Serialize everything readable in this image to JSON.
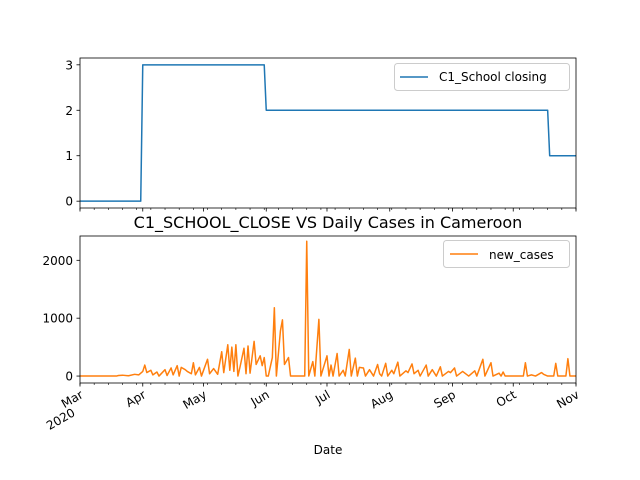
{
  "chart_data": [
    {
      "type": "line",
      "title": "",
      "xlabel": "",
      "ylabel": "",
      "ylim": [
        -0.15,
        3.15
      ],
      "y_ticks": [
        0,
        1,
        2,
        3
      ],
      "legend_placement": "upper right",
      "series": [
        {
          "name": "C1_School closing",
          "color": "#1f77b4",
          "points": [
            [
              "2020-03-01",
              0
            ],
            [
              "2020-03-31",
              0
            ],
            [
              "2020-04-01",
              3
            ],
            [
              "2020-05-31",
              3
            ],
            [
              "2020-06-01",
              2
            ],
            [
              "2020-10-18",
              2
            ],
            [
              "2020-10-19",
              1
            ],
            [
              "2020-11-01",
              1
            ]
          ]
        }
      ]
    },
    {
      "type": "line",
      "title": "C1_SCHOOL_CLOSE VS Daily Cases in Cameroon",
      "xlabel": "Date",
      "ylabel": "",
      "ylim": [
        -120,
        2420
      ],
      "y_ticks": [
        0,
        1000,
        2000
      ],
      "legend_placement": "upper right",
      "series": [
        {
          "name": "new_cases",
          "color": "#ff7f0e",
          "points": [
            [
              "2020-03-01",
              0
            ],
            [
              "2020-03-19",
              0
            ],
            [
              "2020-03-20",
              10
            ],
            [
              "2020-03-22",
              15
            ],
            [
              "2020-03-25",
              5
            ],
            [
              "2020-03-28",
              30
            ],
            [
              "2020-03-30",
              20
            ],
            [
              "2020-04-01",
              80
            ],
            [
              "2020-04-02",
              190
            ],
            [
              "2020-04-03",
              60
            ],
            [
              "2020-04-05",
              100
            ],
            [
              "2020-04-06",
              20
            ],
            [
              "2020-04-08",
              70
            ],
            [
              "2020-04-09",
              0
            ],
            [
              "2020-04-12",
              110
            ],
            [
              "2020-04-13",
              10
            ],
            [
              "2020-04-15",
              140
            ],
            [
              "2020-04-16",
              20
            ],
            [
              "2020-04-18",
              180
            ],
            [
              "2020-04-19",
              0
            ],
            [
              "2020-04-20",
              150
            ],
            [
              "2020-04-22",
              110
            ],
            [
              "2020-04-23",
              80
            ],
            [
              "2020-04-25",
              40
            ],
            [
              "2020-04-26",
              230
            ],
            [
              "2020-04-27",
              20
            ],
            [
              "2020-04-29",
              150
            ],
            [
              "2020-04-30",
              0
            ],
            [
              "2020-05-03",
              290
            ],
            [
              "2020-05-04",
              40
            ],
            [
              "2020-05-06",
              130
            ],
            [
              "2020-05-08",
              30
            ],
            [
              "2020-05-10",
              420
            ],
            [
              "2020-05-11",
              60
            ],
            [
              "2020-05-13",
              540
            ],
            [
              "2020-05-14",
              100
            ],
            [
              "2020-05-15",
              500
            ],
            [
              "2020-05-16",
              80
            ],
            [
              "2020-05-17",
              540
            ],
            [
              "2020-05-18",
              0
            ],
            [
              "2020-05-19",
              150
            ],
            [
              "2020-05-21",
              480
            ],
            [
              "2020-05-22",
              40
            ],
            [
              "2020-05-23",
              520
            ],
            [
              "2020-05-24",
              50
            ],
            [
              "2020-05-26",
              600
            ],
            [
              "2020-05-27",
              200
            ],
            [
              "2020-05-29",
              350
            ],
            [
              "2020-05-30",
              180
            ],
            [
              "2020-05-31",
              320
            ],
            [
              "2020-06-01",
              0
            ],
            [
              "2020-06-02",
              0
            ],
            [
              "2020-06-04",
              320
            ],
            [
              "2020-06-05",
              1180
            ],
            [
              "2020-06-06",
              0
            ],
            [
              "2020-06-08",
              780
            ],
            [
              "2020-06-09",
              970
            ],
            [
              "2020-06-10",
              200
            ],
            [
              "2020-06-12",
              320
            ],
            [
              "2020-06-13",
              0
            ],
            [
              "2020-06-20",
              0
            ],
            [
              "2020-06-21",
              2330
            ],
            [
              "2020-06-22",
              0
            ],
            [
              "2020-06-24",
              250
            ],
            [
              "2020-06-25",
              0
            ],
            [
              "2020-06-27",
              980
            ],
            [
              "2020-06-28",
              0
            ],
            [
              "2020-07-01",
              350
            ],
            [
              "2020-07-02",
              0
            ],
            [
              "2020-07-03",
              190
            ],
            [
              "2020-07-04",
              0
            ],
            [
              "2020-07-06",
              390
            ],
            [
              "2020-07-07",
              0
            ],
            [
              "2020-07-09",
              100
            ],
            [
              "2020-07-10",
              0
            ],
            [
              "2020-07-12",
              460
            ],
            [
              "2020-07-13",
              0
            ],
            [
              "2020-07-15",
              310
            ],
            [
              "2020-07-16",
              0
            ],
            [
              "2020-07-17",
              150
            ],
            [
              "2020-07-19",
              140
            ],
            [
              "2020-07-20",
              0
            ],
            [
              "2020-07-22",
              110
            ],
            [
              "2020-07-24",
              0
            ],
            [
              "2020-07-26",
              200
            ],
            [
              "2020-07-27",
              40
            ],
            [
              "2020-07-28",
              0
            ],
            [
              "2020-07-30",
              220
            ],
            [
              "2020-07-31",
              0
            ],
            [
              "2020-08-02",
              100
            ],
            [
              "2020-08-03",
              40
            ],
            [
              "2020-08-05",
              240
            ],
            [
              "2020-08-06",
              0
            ],
            [
              "2020-08-09",
              90
            ],
            [
              "2020-08-10",
              60
            ],
            [
              "2020-08-12",
              210
            ],
            [
              "2020-08-13",
              40
            ],
            [
              "2020-08-15",
              100
            ],
            [
              "2020-08-16",
              0
            ],
            [
              "2020-08-19",
              190
            ],
            [
              "2020-08-20",
              0
            ],
            [
              "2020-08-22",
              110
            ],
            [
              "2020-08-24",
              0
            ],
            [
              "2020-08-26",
              160
            ],
            [
              "2020-08-27",
              0
            ],
            [
              "2020-08-30",
              80
            ],
            [
              "2020-08-31",
              60
            ],
            [
              "2020-09-02",
              140
            ],
            [
              "2020-09-03",
              0
            ],
            [
              "2020-09-06",
              80
            ],
            [
              "2020-09-09",
              0
            ],
            [
              "2020-09-12",
              90
            ],
            [
              "2020-09-13",
              0
            ],
            [
              "2020-09-16",
              290
            ],
            [
              "2020-09-17",
              0
            ],
            [
              "2020-09-20",
              230
            ],
            [
              "2020-09-21",
              0
            ],
            [
              "2020-09-24",
              50
            ],
            [
              "2020-09-25",
              0
            ],
            [
              "2020-09-26",
              70
            ],
            [
              "2020-09-27",
              0
            ],
            [
              "2020-10-06",
              0
            ],
            [
              "2020-10-07",
              230
            ],
            [
              "2020-10-08",
              0
            ],
            [
              "2020-10-10",
              20
            ],
            [
              "2020-10-12",
              0
            ],
            [
              "2020-10-15",
              60
            ],
            [
              "2020-10-16",
              30
            ],
            [
              "2020-10-18",
              0
            ],
            [
              "2020-10-21",
              0
            ],
            [
              "2020-10-22",
              220
            ],
            [
              "2020-10-23",
              0
            ],
            [
              "2020-10-27",
              0
            ],
            [
              "2020-10-28",
              300
            ],
            [
              "2020-10-29",
              0
            ],
            [
              "2020-11-01",
              0
            ]
          ]
        }
      ]
    }
  ],
  "x_axis": {
    "range": [
      "2020-03-01",
      "2020-11-01"
    ],
    "ticks": [
      {
        "date": "2020-03-01",
        "label": "Mar",
        "sublabel": "2020"
      },
      {
        "date": "2020-04-01",
        "label": "Apr",
        "sublabel": ""
      },
      {
        "date": "2020-05-01",
        "label": "May",
        "sublabel": ""
      },
      {
        "date": "2020-06-01",
        "label": "Jun",
        "sublabel": ""
      },
      {
        "date": "2020-07-01",
        "label": "Jul",
        "sublabel": ""
      },
      {
        "date": "2020-08-01",
        "label": "Aug",
        "sublabel": ""
      },
      {
        "date": "2020-09-01",
        "label": "Sep",
        "sublabel": ""
      },
      {
        "date": "2020-10-01",
        "label": "Oct",
        "sublabel": ""
      },
      {
        "date": "2020-11-01",
        "label": "Nov",
        "sublabel": ""
      }
    ]
  }
}
